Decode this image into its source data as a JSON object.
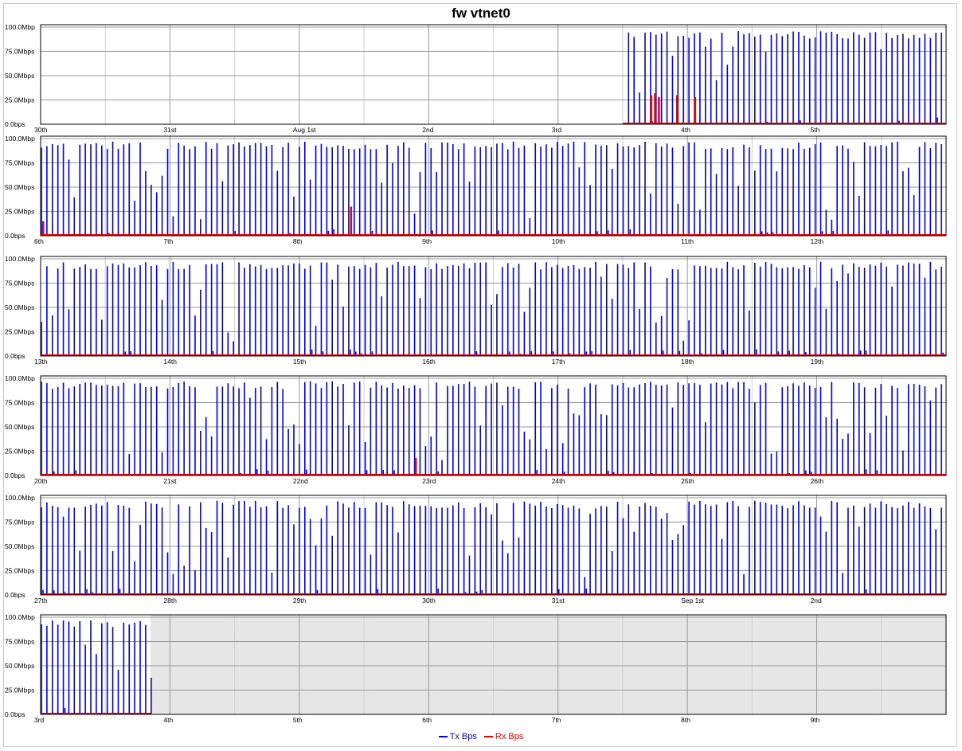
{
  "chart_data": {
    "type": "bar",
    "title": "fw vtnet0",
    "y_axis": {
      "ticks": [
        "0.0bps",
        "25.0Mbps",
        "50.0Mbps",
        "75.0Mbps",
        "100.0Mbp"
      ],
      "ylim": [
        0,
        100
      ],
      "unit": "Mbps"
    },
    "grid": true,
    "legend_position": "bottom-center",
    "colors": {
      "tx": "#0000ee",
      "rx": "#ee0000",
      "no_data": "#e6e6e6",
      "major_grid": "#999999",
      "minor_grid": "#d0d0d0"
    },
    "legend": [
      {
        "name": "Tx Bps",
        "color": "#0000ee"
      },
      {
        "name": "Rx Bps",
        "color": "#ee0000"
      }
    ],
    "rows": [
      {
        "day_labels": [
          "30th",
          "31st",
          "Aug 1st",
          "2nd",
          "3rd",
          "4th",
          "5th"
        ],
        "data_start_day": 4.5,
        "data_end_day": 7,
        "rx_spikes": [
          [
            4.72,
            30
          ],
          [
            4.75,
            32
          ],
          [
            4.78,
            28
          ],
          [
            4.92,
            30
          ],
          [
            5.06,
            28
          ]
        ],
        "tx_level": 92
      },
      {
        "day_labels": [
          "6th",
          "7th",
          "8th",
          "9th",
          "10th",
          "11th",
          "12th"
        ],
        "data_start_day": 0,
        "data_end_day": 7,
        "rx_spikes": [
          [
            0.02,
            15
          ],
          [
            2.4,
            30
          ]
        ],
        "tx_level": 93
      },
      {
        "day_labels": [
          "13th",
          "14th",
          "15th",
          "16th",
          "17th",
          "18th",
          "19th"
        ],
        "data_start_day": 0,
        "data_end_day": 7,
        "rx_spikes": [],
        "tx_level": 93
      },
      {
        "day_labels": [
          "20th",
          "21st",
          "22nd",
          "23rd",
          "24th",
          "25th",
          "26th"
        ],
        "data_start_day": 0,
        "data_end_day": 7,
        "rx_spikes": [
          [
            2.9,
            18
          ]
        ],
        "tx_level": 93
      },
      {
        "day_labels": [
          "27th",
          "28th",
          "29th",
          "30th",
          "31st",
          "Sep 1st",
          "2nd"
        ],
        "data_start_day": 0,
        "data_end_day": 7,
        "rx_spikes": [],
        "tx_level": 93
      },
      {
        "day_labels": [
          "3rd",
          "4th",
          "5th",
          "6th",
          "7th",
          "8th",
          "9th"
        ],
        "data_start_day": 0,
        "data_end_day": 0.85,
        "rx_spikes": [],
        "tx_level": 93
      }
    ]
  }
}
